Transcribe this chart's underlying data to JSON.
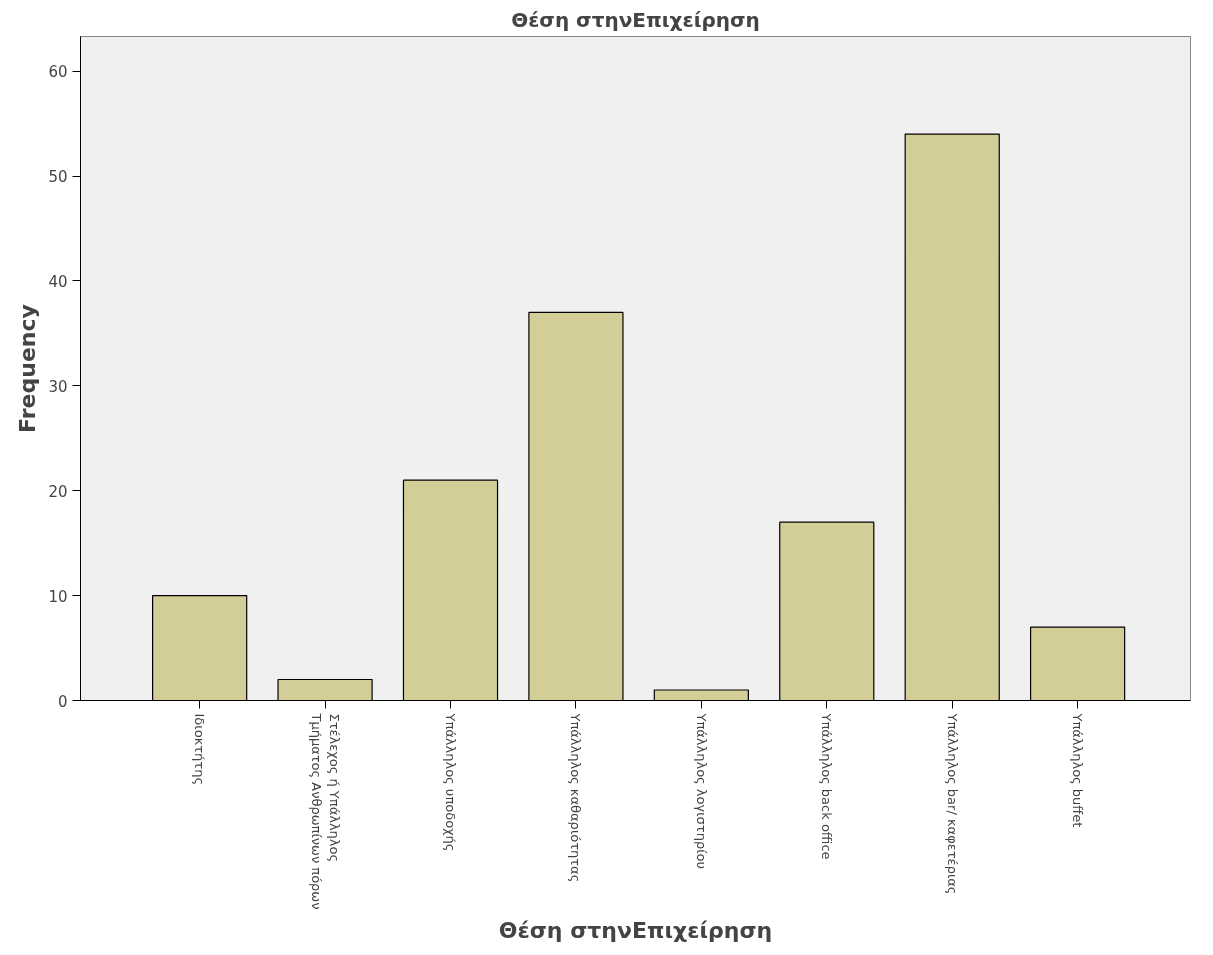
{
  "chart_data": {
    "type": "bar",
    "title": "Θέση στηνΕπιχείρηση",
    "xlabel": "Θέση στηνΕπιχείρηση",
    "ylabel": "Frequency",
    "categories": [
      "Ιδιοκτήτης",
      "Στέλεχος ή Υπάλληλος Τμήματος Ανθρωπίνων πόρων",
      "Υπάλληλος υποδοχής",
      "Υπάλληλος καθαριότητας",
      "Υπάλληλος λογιστηρίου",
      "Υπάλληλος back office",
      "Υπάλληλος bar/ καφετέριας",
      "Υπάλληλος buffet"
    ],
    "values": [
      10,
      2,
      21,
      37,
      1,
      17,
      54,
      7
    ],
    "color": "#d3ce97",
    "ylim": [
      0,
      63.3
    ],
    "yticks": [
      0,
      10,
      20,
      30,
      40,
      50,
      60
    ],
    "grid": false
  }
}
